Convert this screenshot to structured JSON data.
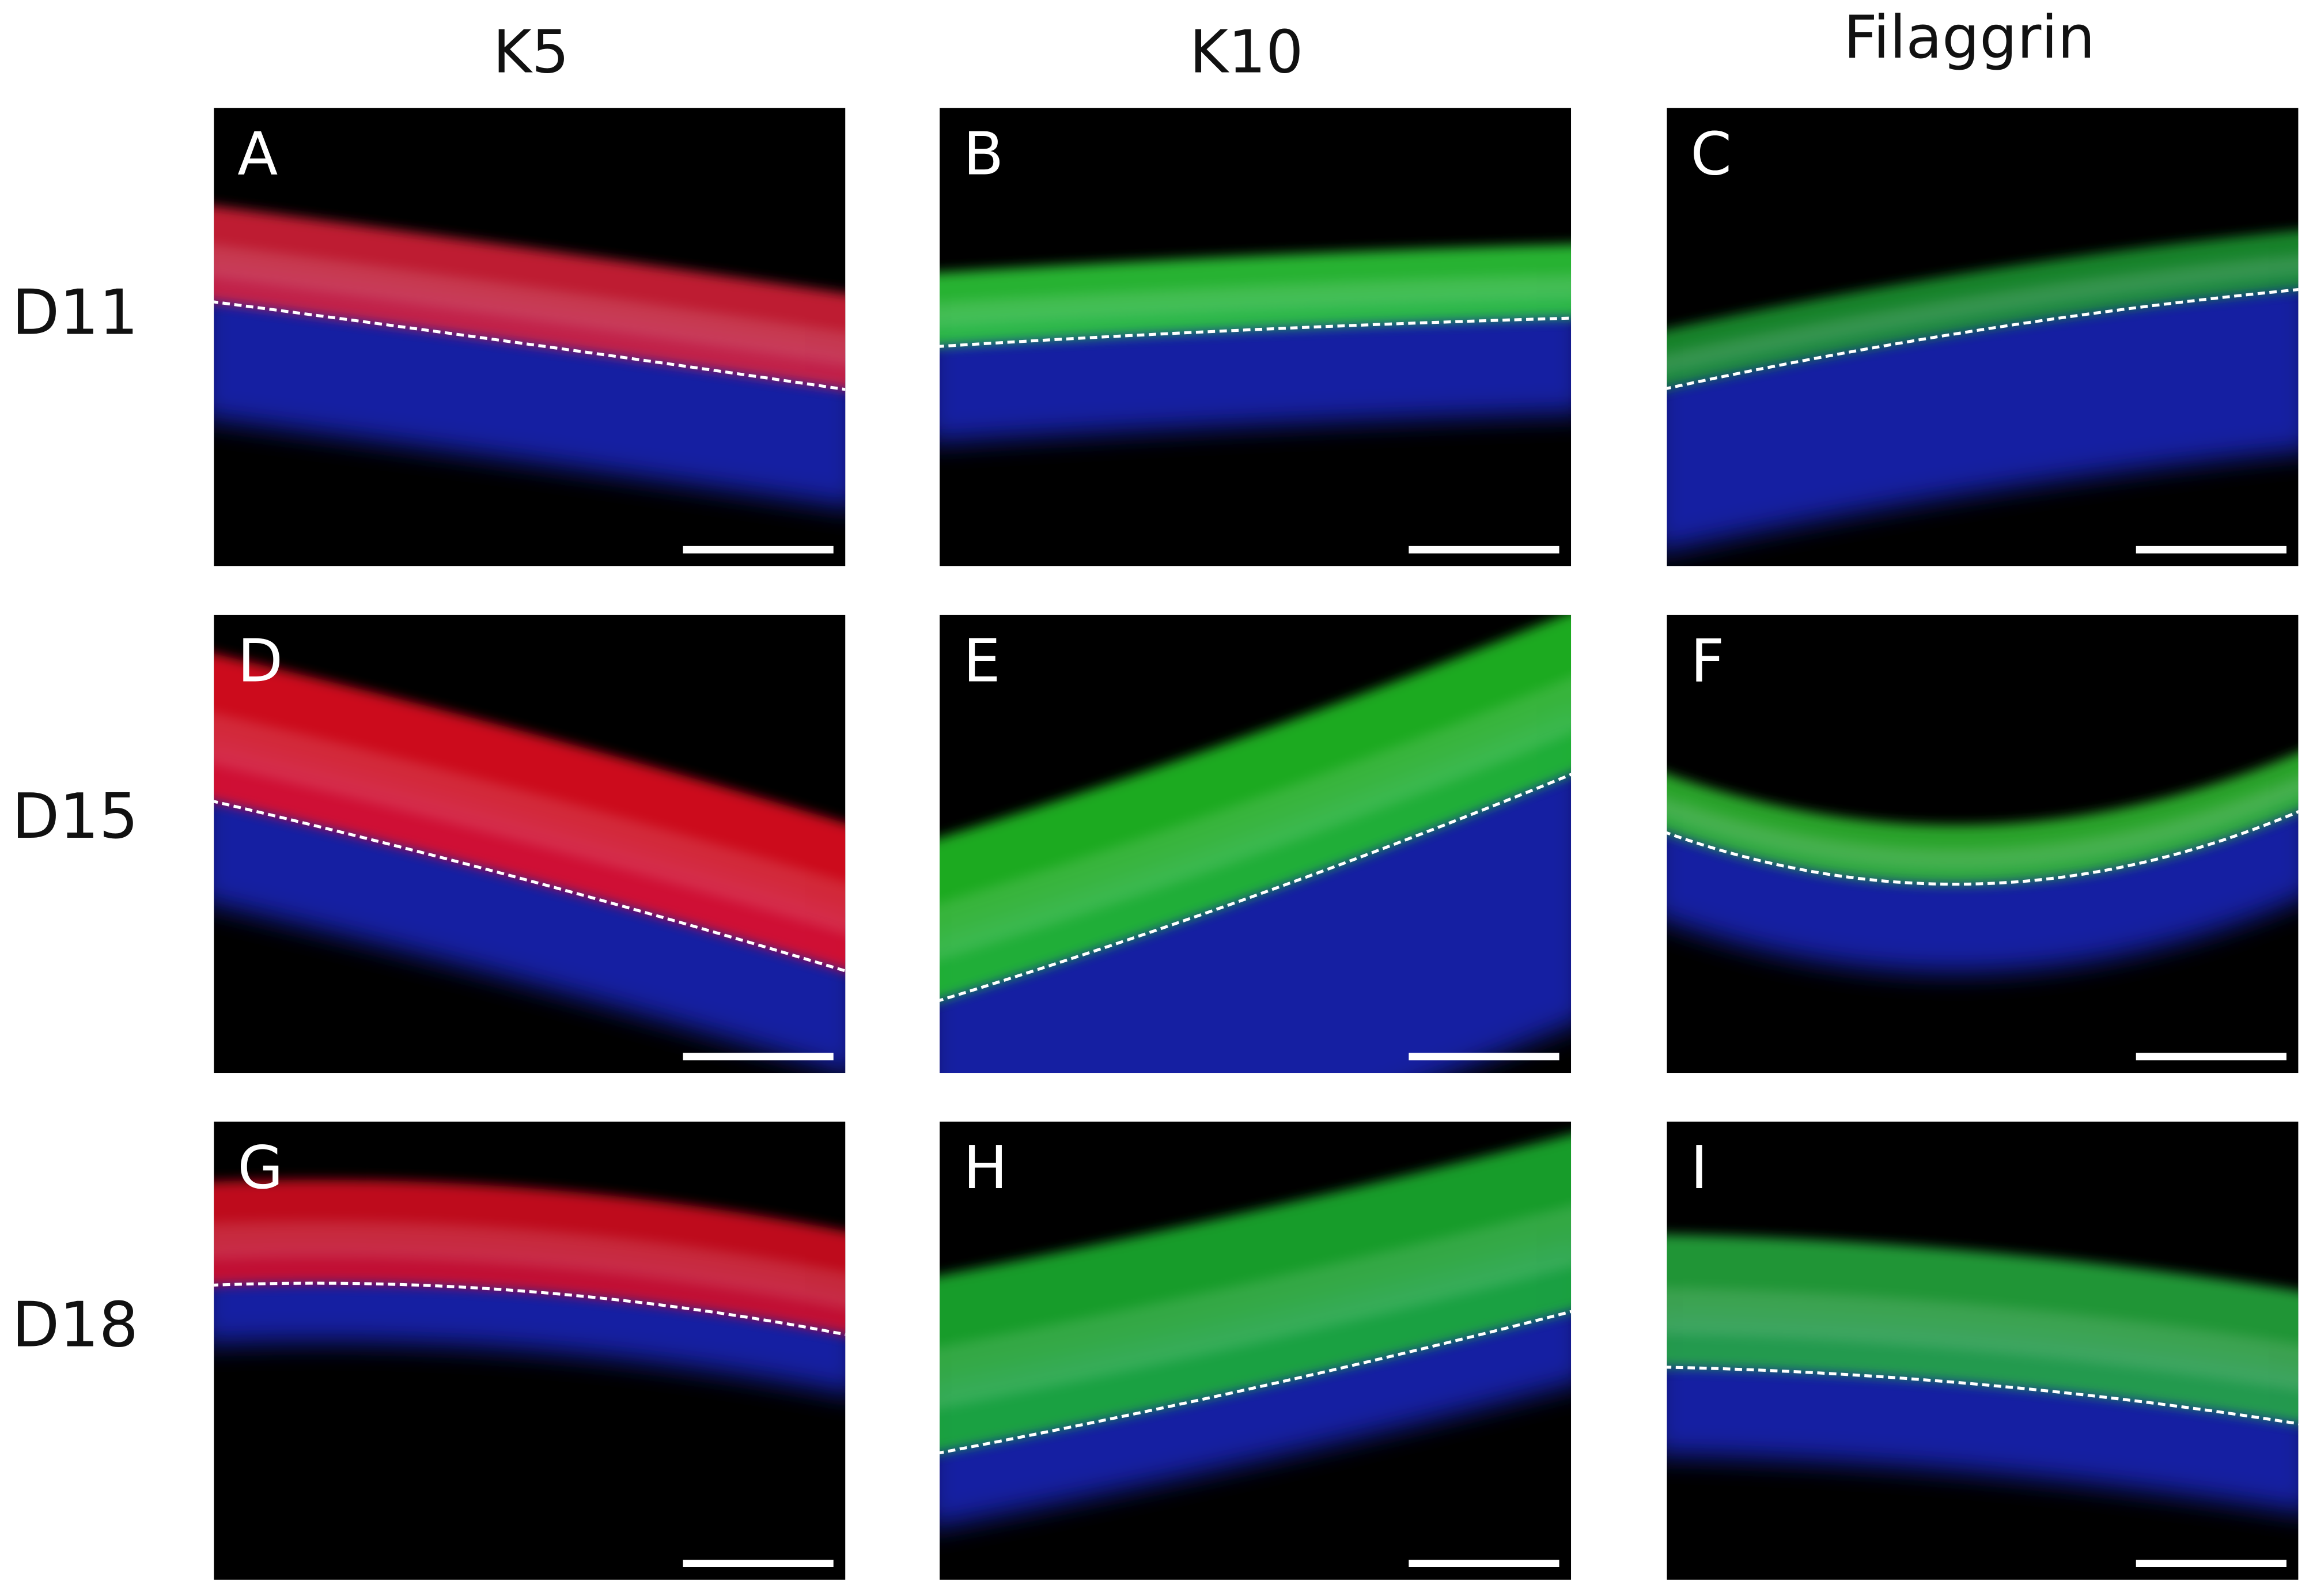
{
  "column_headers": [
    "K5",
    "K10",
    "Filaggrin"
  ],
  "row_labels": [
    "D11",
    "D15",
    "D18"
  ],
  "panels": [
    [
      "A",
      "B",
      "C"
    ],
    [
      "D",
      "E",
      "F"
    ],
    [
      "G",
      "H",
      "I"
    ]
  ]
}
